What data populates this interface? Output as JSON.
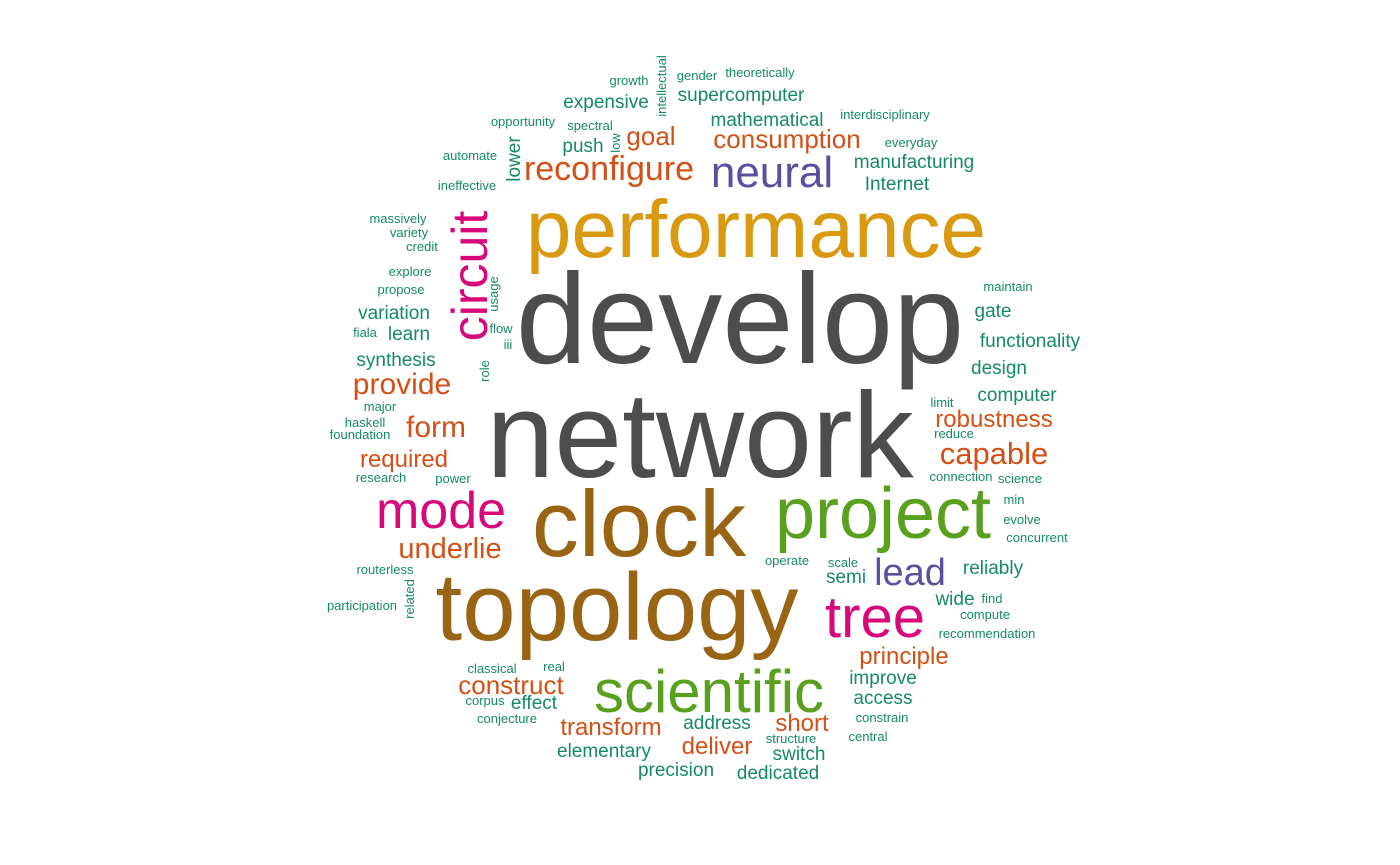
{
  "colors": {
    "gray": "#4d4d4d",
    "gold": "#d99a12",
    "brown": "#9a6415",
    "green": "#58a01d",
    "magenta": "#d9087a",
    "orange": "#d35016",
    "purple": "#5d4f9e",
    "teal": "#158a68"
  },
  "words": [
    {
      "text": "develop",
      "color": "gray"
    },
    {
      "text": "network",
      "color": "gray"
    },
    {
      "text": "performance",
      "color": "gold"
    },
    {
      "text": "topology",
      "color": "brown"
    },
    {
      "text": "clock",
      "color": "brown"
    },
    {
      "text": "project",
      "color": "green"
    },
    {
      "text": "scientific",
      "color": "green"
    },
    {
      "text": "tree",
      "color": "magenta"
    },
    {
      "text": "mode",
      "color": "magenta"
    },
    {
      "text": "circuit",
      "color": "magenta"
    },
    {
      "text": "neural",
      "color": "purple"
    },
    {
      "text": "lead",
      "color": "purple"
    },
    {
      "text": "reconfigure",
      "color": "orange"
    },
    {
      "text": "consumption",
      "color": "orange"
    },
    {
      "text": "goal",
      "color": "orange"
    },
    {
      "text": "provide",
      "color": "orange"
    },
    {
      "text": "form",
      "color": "orange"
    },
    {
      "text": "required",
      "color": "orange"
    },
    {
      "text": "underlie",
      "color": "orange"
    },
    {
      "text": "robustness",
      "color": "orange"
    },
    {
      "text": "capable",
      "color": "orange"
    },
    {
      "text": "principle",
      "color": "orange"
    },
    {
      "text": "construct",
      "color": "orange"
    },
    {
      "text": "transform",
      "color": "orange"
    },
    {
      "text": "deliver",
      "color": "orange"
    },
    {
      "text": "short",
      "color": "orange"
    },
    {
      "text": "expensive",
      "color": "teal"
    },
    {
      "text": "supercomputer",
      "color": "teal"
    },
    {
      "text": "mathematical",
      "color": "teal"
    },
    {
      "text": "manufacturing",
      "color": "teal"
    },
    {
      "text": "Internet",
      "color": "teal"
    },
    {
      "text": "push",
      "color": "teal"
    },
    {
      "text": "lower",
      "color": "teal"
    },
    {
      "text": "variation",
      "color": "teal"
    },
    {
      "text": "learn",
      "color": "teal"
    },
    {
      "text": "synthesis",
      "color": "teal"
    },
    {
      "text": "gate",
      "color": "teal"
    },
    {
      "text": "functionality",
      "color": "teal"
    },
    {
      "text": "design",
      "color": "teal"
    },
    {
      "text": "computer",
      "color": "teal"
    },
    {
      "text": "reliably",
      "color": "teal"
    },
    {
      "text": "semi",
      "color": "teal"
    },
    {
      "text": "wide",
      "color": "teal"
    },
    {
      "text": "improve",
      "color": "teal"
    },
    {
      "text": "access",
      "color": "teal"
    },
    {
      "text": "effect",
      "color": "teal"
    },
    {
      "text": "address",
      "color": "teal"
    },
    {
      "text": "elementary",
      "color": "teal"
    },
    {
      "text": "precision",
      "color": "teal"
    },
    {
      "text": "dedicated",
      "color": "teal"
    },
    {
      "text": "switch",
      "color": "teal"
    },
    {
      "text": "growth",
      "color": "teal"
    },
    {
      "text": "intellectual",
      "color": "teal"
    },
    {
      "text": "gender",
      "color": "teal"
    },
    {
      "text": "theoretically",
      "color": "teal"
    },
    {
      "text": "opportunity",
      "color": "teal"
    },
    {
      "text": "spectral",
      "color": "teal"
    },
    {
      "text": "low",
      "color": "teal"
    },
    {
      "text": "interdisciplinary",
      "color": "teal"
    },
    {
      "text": "automate",
      "color": "teal"
    },
    {
      "text": "everyday",
      "color": "teal"
    },
    {
      "text": "ineffective",
      "color": "teal"
    },
    {
      "text": "massively",
      "color": "teal"
    },
    {
      "text": "variety",
      "color": "teal"
    },
    {
      "text": "credit",
      "color": "teal"
    },
    {
      "text": "explore",
      "color": "teal"
    },
    {
      "text": "propose",
      "color": "teal"
    },
    {
      "text": "usage",
      "color": "teal"
    },
    {
      "text": "maintain",
      "color": "teal"
    },
    {
      "text": "fiala",
      "color": "teal"
    },
    {
      "text": "flow",
      "color": "teal"
    },
    {
      "text": "iii",
      "color": "teal"
    },
    {
      "text": "role",
      "color": "teal"
    },
    {
      "text": "major",
      "color": "teal"
    },
    {
      "text": "haskell",
      "color": "teal"
    },
    {
      "text": "foundation",
      "color": "teal"
    },
    {
      "text": "limit",
      "color": "teal"
    },
    {
      "text": "reduce",
      "color": "teal"
    },
    {
      "text": "research",
      "color": "teal"
    },
    {
      "text": "power",
      "color": "teal"
    },
    {
      "text": "connection",
      "color": "teal"
    },
    {
      "text": "science",
      "color": "teal"
    },
    {
      "text": "min",
      "color": "teal"
    },
    {
      "text": "evolve",
      "color": "teal"
    },
    {
      "text": "concurrent",
      "color": "teal"
    },
    {
      "text": "operate",
      "color": "teal"
    },
    {
      "text": "scale",
      "color": "teal"
    },
    {
      "text": "routerless",
      "color": "teal"
    },
    {
      "text": "participation",
      "color": "teal"
    },
    {
      "text": "related",
      "color": "teal"
    },
    {
      "text": "find",
      "color": "teal"
    },
    {
      "text": "compute",
      "color": "teal"
    },
    {
      "text": "recommendation",
      "color": "teal"
    },
    {
      "text": "classical",
      "color": "teal"
    },
    {
      "text": "real",
      "color": "teal"
    },
    {
      "text": "corpus",
      "color": "teal"
    },
    {
      "text": "conjecture",
      "color": "teal"
    },
    {
      "text": "constrain",
      "color": "teal"
    },
    {
      "text": "central",
      "color": "teal"
    },
    {
      "text": "structure",
      "color": "teal"
    }
  ]
}
